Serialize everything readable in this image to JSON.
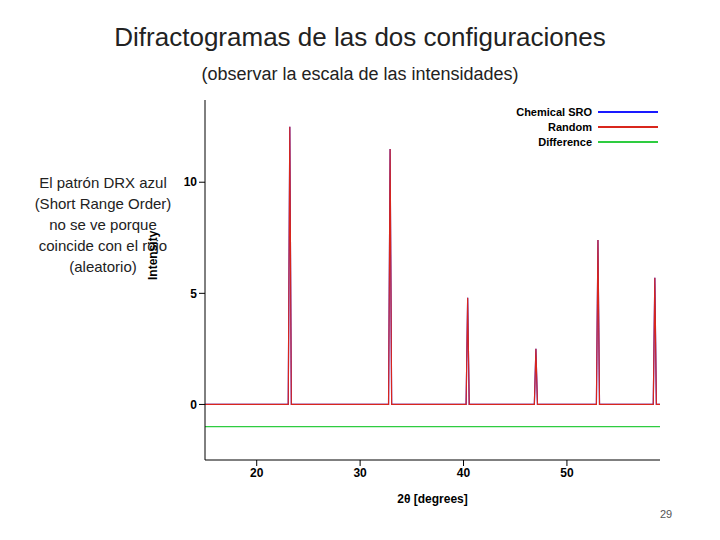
{
  "title": "Difractogramas de las dos configuraciones",
  "subtitle": "(observar la escala de las intensidades)",
  "note": "El patrón DRX azul (Short Range Order) no se ve porque coincide con el rojo (aleatorio)",
  "page": "29",
  "chart_data": {
    "type": "line",
    "x_label": "2θ [degrees]",
    "y_label": "Intensity",
    "xlim": [
      15,
      59
    ],
    "ylim": [
      -2.5,
      13.7
    ],
    "xticks": [
      20,
      30,
      40,
      50
    ],
    "yticks": [
      0,
      5,
      10
    ],
    "grid": false,
    "legend": "upper right",
    "x": [
      15,
      23.05,
      23.2,
      23.35,
      32.75,
      32.9,
      33.05,
      40.25,
      40.4,
      40.55,
      46.85,
      47.0,
      47.15,
      52.85,
      53.0,
      53.15,
      58.35,
      58.5,
      58.65,
      59
    ],
    "series": [
      {
        "name": "Chemical SRO",
        "color": "#1a1aff",
        "values": [
          0,
          0,
          12.5,
          0,
          0,
          11.5,
          0,
          0,
          4.8,
          0,
          0,
          2.5,
          0,
          0,
          7.4,
          0,
          0,
          5.7,
          0,
          0
        ]
      },
      {
        "name": "Random",
        "color": "#d9261c",
        "values": [
          0,
          0,
          12.5,
          0,
          0,
          11.5,
          0,
          0,
          4.8,
          0,
          0,
          2.5,
          0,
          0,
          7.4,
          0,
          0,
          5.7,
          0,
          0
        ]
      },
      {
        "name": "Difference",
        "color": "#2ecc40",
        "values": [
          -1,
          -1,
          -1,
          -1,
          -1,
          -1,
          -1,
          -1,
          -1,
          -1,
          -1,
          -1,
          -1,
          -1,
          -1,
          -1,
          -1,
          -1,
          -1,
          -1
        ]
      }
    ]
  }
}
